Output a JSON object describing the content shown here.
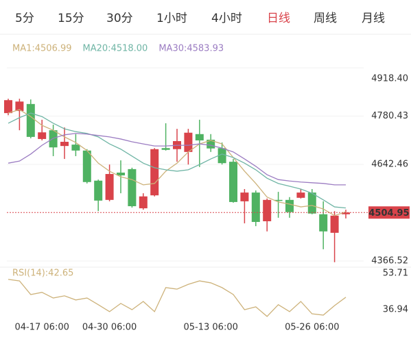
{
  "tabs": [
    "5分",
    "15分",
    "30分",
    "1小时",
    "4小时",
    "日线",
    "周线",
    "月线"
  ],
  "selected_tab": 5,
  "chart_data": [
    {
      "type": "candlestick",
      "categories": [
        null,
        null,
        null,
        "04-17 06:00",
        null,
        null,
        null,
        null,
        null,
        "04-30 06:00",
        null,
        null,
        null,
        null,
        null,
        null,
        null,
        null,
        "05-13 06:00",
        null,
        null,
        null,
        null,
        null,
        null,
        null,
        null,
        "05-26 06:00",
        null,
        null,
        null
      ],
      "open": [
        4789,
        4795,
        4815,
        4715,
        4740,
        4695,
        4699,
        4682,
        4596,
        4541,
        4619,
        4629,
        4517,
        4554,
        4689,
        4686,
        4678,
        4729,
        4713,
        4689,
        4650,
        4537,
        4562,
        4480,
        4541,
        4541,
        4547,
        4562,
        4500,
        4447,
        4500
      ],
      "high": [
        4830,
        4830,
        4828,
        4770,
        4756,
        4748,
        4729,
        4686,
        4599,
        4642,
        4654,
        4633,
        4560,
        4689,
        4760,
        4744,
        4744,
        4770,
        4729,
        4705,
        4658,
        4572,
        4568,
        4545,
        4564,
        4549,
        4572,
        4572,
        4537,
        4509,
        4513
      ],
      "low": [
        4783,
        4740,
        4717,
        4711,
        4666,
        4658,
        4666,
        4588,
        4509,
        4537,
        4560,
        4519,
        4513,
        4551,
        4682,
        4650,
        4642,
        4635,
        4678,
        4642,
        4533,
        4474,
        4466,
        4451,
        4490,
        4490,
        4545,
        4500,
        4400,
        4363,
        4488
      ],
      "close": [
        4826,
        4822,
        4721,
        4734,
        4691,
        4707,
        4682,
        4592,
        4539,
        4615,
        4611,
        4523,
        4551,
        4686,
        4684,
        4709,
        4733,
        4711,
        4688,
        4646,
        4535,
        4562,
        4478,
        4541,
        4539,
        4506,
        4562,
        4502,
        4451,
        4496,
        4504.95
      ],
      "up_color": "#d9434a",
      "down_color": "#4fb262",
      "series": [
        {
          "name": "MA1:4506.99",
          "color": "#cdb27a",
          "values": [
            4789,
            4799,
            4779,
            4754,
            4740,
            4721,
            4705,
            4682,
            4646,
            4623,
            4607,
            4599,
            4584,
            4588,
            4623,
            4646,
            4678,
            4701,
            4711,
            4701,
            4662,
            4623,
            4588,
            4549,
            4535,
            4529,
            4521,
            4525,
            4515,
            4496,
            4507
          ]
        },
        {
          "name": "MA20:4518.00",
          "color": "#6fb5a5",
          "values": [
            4760,
            4776,
            4789,
            4779,
            4760,
            4744,
            4736,
            4731,
            4721,
            4701,
            4686,
            4666,
            4646,
            4633,
            4627,
            4623,
            4627,
            4642,
            4658,
            4672,
            4662,
            4646,
            4627,
            4603,
            4588,
            4580,
            4572,
            4560,
            4541,
            4521,
            4518
          ]
        },
        {
          "name": "MA30:4583.93",
          "color": "#9b7cc2",
          "values": [
            4646,
            4652,
            4672,
            4697,
            4717,
            4727,
            4731,
            4729,
            4725,
            4721,
            4715,
            4707,
            4701,
            4695,
            4695,
            4697,
            4697,
            4701,
            4697,
            4689,
            4678,
            4658,
            4637,
            4613,
            4599,
            4595,
            4592,
            4590,
            4588,
            4584,
            4584
          ]
        }
      ],
      "last_price": 4504.95,
      "ylim": [
        4366.52,
        {
          "value": 4918.4,
          "label": "4918.40"
        }
      ],
      "yticks": [
        4366.52,
        4642.46,
        4780.43,
        {
          "value": 4918.4,
          "label": "4918.40"
        }
      ]
    },
    {
      "type": "line",
      "series": [
        {
          "name": "RSI(14):42.65",
          "color": "#cdb27a",
          "values": [
            50.9,
            50.2,
            43.9,
            44.9,
            42.3,
            43.3,
            41.4,
            42.3,
            39.2,
            36.0,
            39.8,
            36.9,
            40.7,
            36.0,
            47.1,
            46.4,
            48.6,
            50.2,
            49.3,
            47.1,
            43.9,
            36.9,
            38.2,
            33.8,
            39.2,
            36.0,
            40.7,
            35.0,
            34.4,
            38.8,
            42.65
          ]
        }
      ],
      "ylim": [
        36.94,
        53.71
      ],
      "yticks": [
        36.94,
        53.71
      ]
    }
  ]
}
